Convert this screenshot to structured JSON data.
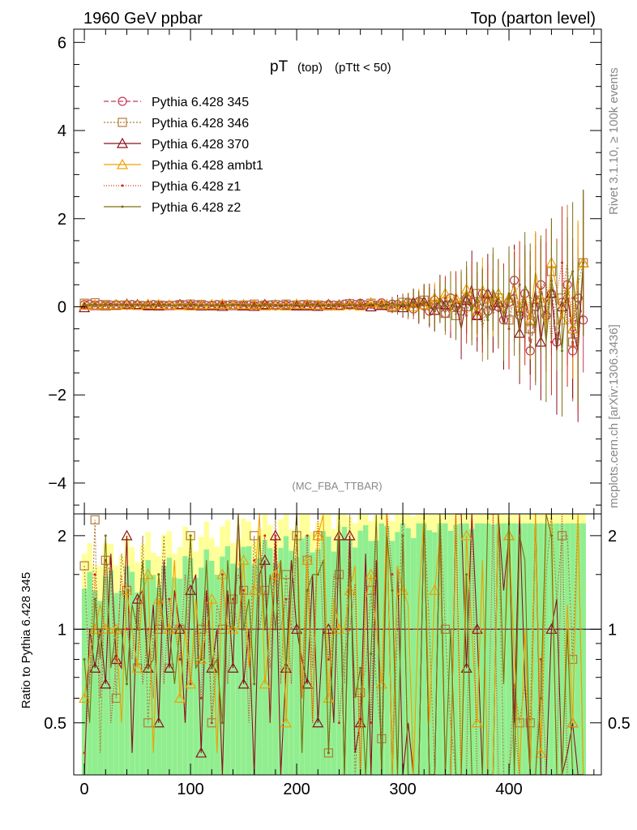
{
  "header": {
    "left": "1960 GeV ppbar",
    "right": "Top (parton level)"
  },
  "side_labels": {
    "rivet": "Rivet 3.1.10, ≥ 100k events",
    "mcplots": "mcplots.cern.ch [arXiv:1306.3436]"
  },
  "chart_data": [
    {
      "type": "line",
      "title_main": "pT",
      "title_sub": "(top)",
      "title_cut": "(pTtt < 50)",
      "watermark": "(MC_FBA_TTBAR)",
      "xlim": [
        -10,
        487
      ],
      "ylim": [
        -4.7,
        6.3
      ],
      "yticks": [
        -4,
        -2,
        0,
        2,
        4,
        6
      ],
      "ytick_labels": [
        "−4",
        "−2",
        "0",
        "2",
        "4",
        "6"
      ],
      "legend_position": "top-left",
      "series": [
        {
          "name": "Pythia 6.428 345",
          "color": "#c0395a",
          "marker": "circle",
          "dash": "6,3"
        },
        {
          "name": "Pythia 6.428 346",
          "color": "#b07c3a",
          "marker": "square",
          "dash": "2,2"
        },
        {
          "name": "Pythia 6.428 370",
          "color": "#8b1020",
          "marker": "triangle",
          "dash": ""
        },
        {
          "name": "Pythia 6.428 ambt1",
          "color": "#f0a000",
          "marker": "triangle",
          "dash": ""
        },
        {
          "name": "Pythia 6.428 z1",
          "color": "#d42c1c",
          "marker": "dot",
          "dash": "1,2"
        },
        {
          "name": "Pythia 6.428 z2",
          "color": "#7a7010",
          "marker": "dot",
          "dash": ""
        }
      ],
      "x": [
        0,
        5,
        10,
        15,
        20,
        25,
        30,
        35,
        40,
        45,
        50,
        55,
        60,
        65,
        70,
        75,
        80,
        85,
        90,
        95,
        100,
        105,
        110,
        115,
        120,
        125,
        130,
        135,
        140,
        145,
        150,
        155,
        160,
        165,
        170,
        175,
        180,
        185,
        190,
        195,
        200,
        205,
        210,
        215,
        220,
        225,
        230,
        235,
        240,
        245,
        250,
        255,
        260,
        265,
        270,
        275,
        280,
        285,
        290,
        295,
        300,
        305,
        310,
        315,
        320,
        325,
        330,
        335,
        340,
        345,
        350,
        355,
        360,
        365,
        370,
        375,
        380,
        385,
        390,
        395,
        400,
        405,
        410,
        415,
        420,
        425,
        430,
        435,
        440,
        445,
        450,
        455,
        460,
        465,
        470
      ],
      "values_345": [
        0.05,
        0.06,
        0.04,
        0.05,
        0.03,
        0.04,
        0.05,
        0.04,
        0.03,
        0.05,
        0.04,
        0.03,
        0.04,
        0.05,
        0.04,
        0.03,
        0.04,
        0.03,
        0.05,
        0.04,
        0.03,
        0.04,
        0.05,
        0.03,
        0.04,
        0.05,
        0.04,
        0.03,
        0.04,
        0.02,
        0.03,
        0.04,
        0.03,
        0.02,
        0.03,
        0.04,
        0.02,
        0.03,
        0.04,
        0.03,
        0.02,
        0.05,
        0.03,
        0.04,
        0.02,
        0.03,
        0.05,
        0.04,
        0.02,
        0.06,
        0.03,
        0.05,
        0.08,
        0.04,
        0.06,
        0.03,
        0.09,
        0.02,
        0.06,
        0.05,
        0.03,
        0.1,
        -0.05,
        0.12,
        0.02,
        -0.1,
        0.15,
        0.05,
        -0.15,
        0.2,
        0.0,
        -0.1,
        0.2,
        0.1,
        -0.2,
        0.3,
        -0.1,
        0.15,
        0.0,
        -0.3,
        0.1,
        0.6,
        -0.2,
        0.3,
        -1.0,
        0.0,
        0.5,
        -0.2,
        0.3,
        -0.8,
        0.1,
        0.5,
        -1.0,
        0.2,
        -0.3
      ],
      "values_346": [
        0.08,
        0.04,
        0.09,
        0.02,
        0.05,
        0.06,
        0.03,
        0.07,
        0.04,
        0.05,
        0.03,
        0.06,
        0.02,
        0.05,
        0.04,
        0.06,
        0.03,
        0.04,
        0.05,
        0.02,
        0.06,
        0.03,
        0.05,
        0.04,
        0.02,
        0.06,
        0.04,
        0.03,
        0.05,
        0.02,
        0.04,
        0.03,
        0.06,
        0.02,
        0.04,
        0.03,
        0.05,
        0.02,
        0.06,
        0.03,
        0.04,
        0.02,
        0.05,
        0.03,
        0.04,
        0.06,
        0.02,
        0.05,
        0.03,
        0.04,
        0.07,
        0.01,
        0.05,
        0.03,
        0.08,
        0.02,
        0.04,
        0.06,
        -0.02,
        0.05,
        0.1,
        -0.05,
        0.08,
        0.0,
        0.15,
        -0.1,
        0.05,
        0.2,
        -0.15,
        0.1,
        -0.2,
        0.25,
        0.0,
        -0.1,
        0.3,
        -0.5,
        0.1,
        -0.2,
        0.2,
        0.05,
        -0.3,
        0.4,
        -0.1,
        0.2,
        -0.5,
        0.3,
        0.1,
        -0.3,
        0.8,
        -1.0,
        0.2,
        1.0,
        -0.8,
        0.5,
        1.0
      ],
      "values_370": [
        -0.02,
        0.06,
        0.03,
        0.05,
        0.02,
        0.07,
        0.04,
        0.03,
        0.06,
        0.02,
        0.05,
        0.04,
        0.03,
        0.06,
        0.02,
        0.05,
        0.03,
        0.04,
        0.05,
        0.02,
        0.04,
        0.06,
        0.02,
        0.04,
        0.03,
        0.05,
        0.01,
        0.04,
        0.03,
        0.05,
        0.02,
        0.04,
        0.01,
        0.03,
        0.05,
        0.02,
        0.04,
        0.01,
        0.03,
        0.05,
        0.02,
        0.04,
        0.02,
        0.06,
        0.01,
        0.03,
        0.05,
        0.02,
        0.04,
        0.01,
        0.06,
        0.02,
        0.04,
        0.07,
        0.0,
        0.05,
        0.03,
        0.06,
        0.01,
        0.08,
        -0.02,
        0.05,
        0.1,
        -0.03,
        0.12,
        0.0,
        -0.08,
        0.2,
        0.05,
        -0.1,
        0.1,
        -0.5,
        0.15,
        0.5,
        -0.2,
        0.0,
        0.3,
        -0.1,
        0.1,
        -0.4,
        0.2,
        0.3,
        -0.6,
        0.2,
        -0.3,
        0.4,
        -0.8,
        0.1,
        0.3,
        -1.0,
        0.0,
        0.2,
        -0.5,
        -1.0,
        1.0
      ],
      "values_ambt1": [
        0.03,
        0.05,
        0.04,
        0.06,
        0.03,
        0.04,
        0.05,
        0.02,
        0.04,
        0.05,
        0.03,
        0.04,
        0.06,
        0.02,
        0.05,
        0.03,
        0.04,
        0.05,
        0.03,
        0.04,
        0.02,
        0.05,
        0.04,
        0.03,
        0.05,
        0.02,
        0.06,
        0.03,
        0.04,
        0.02,
        0.05,
        0.03,
        0.04,
        0.06,
        0.02,
        0.04,
        0.03,
        0.05,
        0.02,
        0.04,
        0.06,
        0.03,
        0.05,
        0.02,
        0.04,
        0.07,
        0.03,
        0.05,
        0.02,
        0.06,
        0.04,
        0.08,
        0.02,
        0.05,
        0.09,
        0.03,
        0.06,
        0.1,
        0.02,
        0.08,
        0.04,
        0.12,
        0.0,
        0.15,
        0.05,
        -0.05,
        0.2,
        0.1,
        0.3,
        -0.1,
        0.2,
        0.05,
        0.4,
        0.1,
        -0.1,
        0.5,
        0.2,
        0.0,
        0.3,
        -0.2,
        0.2,
        0.5,
        0.0,
        0.3,
        -0.3,
        0.8,
        0.2,
        -0.5,
        1.0,
        0.4,
        -0.3,
        0.6,
        -0.5,
        0.8,
        1.0
      ],
      "values_z1": [
        0.02,
        0.04,
        0.06,
        0.03,
        0.05,
        0.02,
        0.04,
        0.06,
        0.03,
        0.04,
        0.05,
        0.02,
        0.04,
        0.03,
        0.06,
        0.02,
        0.05,
        0.03,
        0.04,
        0.06,
        0.02,
        0.04,
        0.03,
        0.05,
        0.02,
        0.04,
        0.06,
        0.02,
        0.05,
        0.03,
        0.04,
        0.02,
        0.05,
        0.03,
        0.06,
        0.02,
        0.04,
        0.03,
        0.05,
        0.02,
        0.04,
        0.03,
        0.06,
        0.02,
        0.05,
        0.03,
        0.04,
        0.06,
        0.01,
        0.05,
        0.03,
        0.07,
        0.02,
        0.06,
        0.03,
        0.08,
        0.01,
        0.05,
        0.09,
        0.0,
        0.06,
        0.02,
        0.1,
        -0.05,
        0.08,
        0.15,
        -0.1,
        0.1,
        0.2,
        -0.05,
        0.25,
        0.0,
        -0.2,
        0.3,
        0.1,
        -0.3,
        0.2,
        0.4,
        -0.1,
        0.1,
        -0.5,
        0.3,
        0.5,
        -0.3,
        0.2,
        -0.6,
        0.4,
        0.6,
        -0.8,
        0.3,
        1.0,
        -0.5,
        0.2,
        -1.0,
        1.0
      ],
      "values_z2": [
        0.04,
        0.03,
        0.05,
        0.04,
        0.06,
        0.03,
        0.05,
        0.04,
        0.02,
        0.06,
        0.04,
        0.05,
        0.03,
        0.04,
        0.06,
        0.03,
        0.04,
        0.02,
        0.05,
        0.04,
        0.06,
        0.03,
        0.04,
        0.05,
        0.03,
        0.04,
        0.02,
        0.05,
        0.04,
        0.06,
        0.03,
        0.05,
        0.02,
        0.04,
        0.03,
        0.06,
        0.02,
        0.05,
        0.03,
        0.04,
        0.05,
        0.02,
        0.04,
        0.06,
        0.03,
        0.05,
        0.02,
        0.04,
        0.06,
        0.02,
        0.05,
        0.03,
        0.06,
        0.01,
        0.05,
        0.07,
        0.02,
        0.04,
        0.08,
        0.01,
        0.06,
        0.03,
        0.1,
        0.0,
        0.12,
        0.05,
        -0.08,
        0.15,
        0.0,
        0.2,
        -0.1,
        0.1,
        0.3,
        -0.1,
        0.2,
        0.0,
        -0.3,
        0.4,
        0.1,
        -0.2,
        0.3,
        0.0,
        -0.4,
        0.5,
        0.2,
        -0.5,
        0.3,
        -0.8,
        0.6,
        0.0,
        -1.0,
        0.5,
        0.8,
        -0.6,
        1.0
      ]
    },
    {
      "type": "line",
      "ylabel": "Ratio to Pythia 6.428 345",
      "ylog": true,
      "ylim": [
        0.34,
        2.35
      ],
      "yticks": [
        0.5,
        1,
        2
      ],
      "ytick_labels": [
        "0.5",
        "1",
        "2"
      ],
      "xlim": [
        -10,
        487
      ],
      "xticks": [
        0,
        100,
        200,
        300,
        400
      ],
      "xtick_labels": [
        "0",
        "100",
        "200",
        "300",
        "400"
      ],
      "reference_line": 1,
      "band_inner_color": "#90ee90",
      "band_outer_color": "#ffff99"
    }
  ]
}
